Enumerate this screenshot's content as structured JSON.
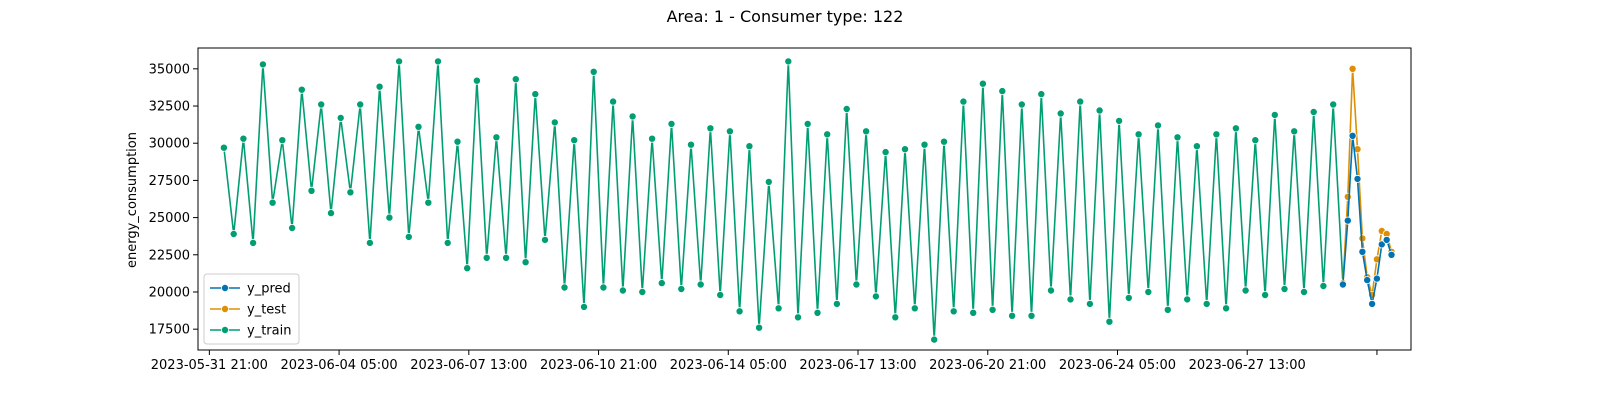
{
  "chart_data": {
    "type": "line",
    "title": "Area: 1 - Consumer type: 122",
    "xlabel": "",
    "ylabel": "energy_consumption",
    "x_ticks": [
      "2023-05-31 21:00",
      "2023-06-04 05:00",
      "2023-06-07 13:00",
      "2023-06-10 21:00",
      "2023-06-14 05:00",
      "2023-06-17 13:00",
      "2023-06-20 21:00",
      "2023-06-24 05:00",
      "2023-06-27 13:00",
      ""
    ],
    "y_ticks": [
      "17500",
      "20000",
      "22500",
      "25000",
      "27500",
      "30000",
      "32500",
      "35000"
    ],
    "y_tick_values": [
      17500,
      20000,
      22500,
      25000,
      27500,
      30000,
      32500,
      35000
    ],
    "xlim": [
      "2023-05-31 14:00",
      "2023-07-01 18:00"
    ],
    "ylim": [
      16100,
      36400
    ],
    "grid": false,
    "legend_position": "lower-left",
    "series": [
      {
        "name": "y_train",
        "color": "#029e73",
        "x": [
          "2023-06-01 06:00",
          "2023-06-01 12:00",
          "2023-06-01 18:00",
          "2023-06-02 00:00",
          "2023-06-02 06:00",
          "2023-06-02 12:00",
          "2023-06-02 18:00",
          "2023-06-03 00:00",
          "2023-06-03 06:00",
          "2023-06-03 12:00",
          "2023-06-03 18:00",
          "2023-06-04 00:00",
          "2023-06-04 06:00",
          "2023-06-04 12:00",
          "2023-06-04 18:00",
          "2023-06-05 00:00",
          "2023-06-05 06:00",
          "2023-06-05 12:00",
          "2023-06-05 18:00",
          "2023-06-06 00:00",
          "2023-06-06 06:00",
          "2023-06-06 12:00",
          "2023-06-06 18:00",
          "2023-06-07 00:00",
          "2023-06-07 06:00",
          "2023-06-07 12:00",
          "2023-06-07 18:00",
          "2023-06-08 00:00",
          "2023-06-08 06:00",
          "2023-06-08 12:00",
          "2023-06-08 18:00",
          "2023-06-09 00:00",
          "2023-06-09 06:00",
          "2023-06-09 12:00",
          "2023-06-09 18:00",
          "2023-06-10 00:00",
          "2023-06-10 06:00",
          "2023-06-10 12:00",
          "2023-06-10 18:00",
          "2023-06-11 00:00",
          "2023-06-11 06:00",
          "2023-06-11 12:00",
          "2023-06-11 18:00",
          "2023-06-12 00:00",
          "2023-06-12 06:00",
          "2023-06-12 12:00",
          "2023-06-12 18:00",
          "2023-06-13 00:00",
          "2023-06-13 06:00",
          "2023-06-13 12:00",
          "2023-06-13 18:00",
          "2023-06-14 00:00",
          "2023-06-14 06:00",
          "2023-06-14 12:00",
          "2023-06-14 18:00",
          "2023-06-15 00:00",
          "2023-06-15 06:00",
          "2023-06-15 12:00",
          "2023-06-15 18:00",
          "2023-06-16 00:00",
          "2023-06-16 06:00",
          "2023-06-16 12:00",
          "2023-06-16 18:00",
          "2023-06-17 00:00",
          "2023-06-17 06:00",
          "2023-06-17 12:00",
          "2023-06-17 18:00",
          "2023-06-18 00:00",
          "2023-06-18 06:00",
          "2023-06-18 12:00",
          "2023-06-18 18:00",
          "2023-06-19 00:00",
          "2023-06-19 06:00",
          "2023-06-19 12:00",
          "2023-06-19 18:00",
          "2023-06-20 00:00",
          "2023-06-20 06:00",
          "2023-06-20 12:00",
          "2023-06-20 18:00",
          "2023-06-21 00:00",
          "2023-06-21 06:00",
          "2023-06-21 12:00",
          "2023-06-21 18:00",
          "2023-06-22 00:00",
          "2023-06-22 06:00",
          "2023-06-22 12:00",
          "2023-06-22 18:00",
          "2023-06-23 00:00",
          "2023-06-23 06:00",
          "2023-06-23 12:00",
          "2023-06-23 18:00",
          "2023-06-24 00:00",
          "2023-06-24 06:00",
          "2023-06-24 12:00",
          "2023-06-24 18:00",
          "2023-06-25 00:00",
          "2023-06-25 06:00",
          "2023-06-25 12:00",
          "2023-06-25 18:00",
          "2023-06-26 00:00",
          "2023-06-26 06:00",
          "2023-06-26 12:00",
          "2023-06-26 18:00",
          "2023-06-27 00:00",
          "2023-06-27 06:00",
          "2023-06-27 12:00",
          "2023-06-27 18:00",
          "2023-06-28 00:00",
          "2023-06-28 06:00",
          "2023-06-28 12:00",
          "2023-06-28 18:00",
          "2023-06-29 00:00",
          "2023-06-29 06:00",
          "2023-06-29 12:00",
          "2023-06-29 18:00",
          "2023-06-30 00:00"
        ],
        "values": [
          29700,
          23900,
          30300,
          23300,
          35300,
          26000,
          30200,
          24300,
          33600,
          26800,
          32600,
          25300,
          31700,
          26700,
          32600,
          23300,
          33800,
          25000,
          35500,
          23700,
          31100,
          26000,
          35500,
          23300,
          30100,
          21600,
          34200,
          22300,
          30400,
          22300,
          34300,
          22000,
          33300,
          23500,
          31400,
          20300,
          30200,
          19000,
          34800,
          20300,
          32800,
          20100,
          31800,
          20000,
          30300,
          20600,
          31300,
          20200,
          29900,
          20500,
          31000,
          19800,
          30800,
          18700,
          29800,
          17600,
          27400,
          18900,
          35500,
          18300,
          31300,
          18600,
          30600,
          19200,
          32300,
          20500,
          30800,
          19700,
          29400,
          18300,
          29600,
          18900,
          29900,
          16800,
          30100,
          18700,
          32800,
          18600,
          34000,
          18800,
          33500,
          18400,
          32600,
          18400,
          33300,
          20100,
          32000,
          19500,
          32800,
          19200,
          32200,
          18000,
          31500,
          19600,
          30600,
          20000,
          31200,
          18800,
          30400,
          19500,
          29800,
          19200,
          30600,
          18900,
          31000,
          20100,
          30200,
          19800,
          31900,
          20200,
          30800,
          20000,
          32100,
          20400,
          32600,
          20600
        ]
      },
      {
        "name": "y_test",
        "color": "#de8f05",
        "x": [
          "2023-06-30 00:00",
          "2023-06-30 03:00",
          "2023-06-30 06:00",
          "2023-06-30 09:00",
          "2023-06-30 12:00",
          "2023-06-30 15:00",
          "2023-06-30 18:00",
          "2023-06-30 21:00",
          "2023-07-01 00:00",
          "2023-07-01 03:00",
          "2023-07-01 06:00"
        ],
        "values": [
          20600,
          26400,
          35000,
          29600,
          23600,
          21000,
          19800,
          22200,
          24100,
          23900,
          22700
        ]
      },
      {
        "name": "y_pred",
        "color": "#0173b2",
        "x": [
          "2023-06-30 00:00",
          "2023-06-30 03:00",
          "2023-06-30 06:00",
          "2023-06-30 09:00",
          "2023-06-30 12:00",
          "2023-06-30 15:00",
          "2023-06-30 18:00",
          "2023-06-30 21:00",
          "2023-07-01 00:00",
          "2023-07-01 03:00",
          "2023-07-01 06:00"
        ],
        "values": [
          20500,
          24800,
          30500,
          27600,
          22700,
          20800,
          19200,
          20900,
          23200,
          23500,
          22500
        ]
      }
    ]
  }
}
